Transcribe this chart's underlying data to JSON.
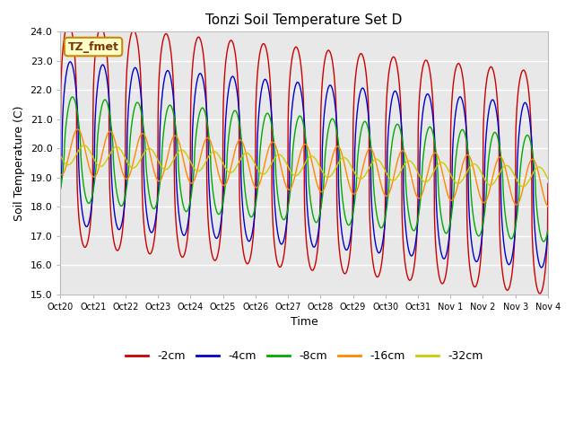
{
  "title": "Tonzi Soil Temperature Set D",
  "xlabel": "Time",
  "ylabel": "Soil Temperature (C)",
  "ylim": [
    15.0,
    24.0
  ],
  "yticks": [
    15.0,
    16.0,
    17.0,
    18.0,
    19.0,
    20.0,
    21.0,
    22.0,
    23.0,
    24.0
  ],
  "xtick_labels": [
    "Oct 20",
    "Oct 21",
    "Oct 22",
    "Oct 23",
    "Oct 24",
    "Oct 25",
    "Oct 26",
    "Oct 27",
    "Oct 28",
    "Oct 29",
    "Oct 30",
    "Oct 31",
    "Nov 1",
    "Nov 2",
    "Nov 3",
    "Nov 4"
  ],
  "legend_labels": [
    "-2cm",
    "-4cm",
    "-8cm",
    "-16cm",
    "-32cm"
  ],
  "line_colors": [
    "#cc0000",
    "#0000cc",
    "#00aa00",
    "#ff8800",
    "#cccc00"
  ],
  "annotation_text": "TZ_fmet",
  "background_color": "#e8e8e8",
  "n_points": 1440,
  "duration_days": 15,
  "mean_start": [
    20.5,
    20.2,
    20.0,
    19.9,
    19.8
  ],
  "mean_end": [
    18.8,
    18.7,
    18.6,
    18.8,
    19.0
  ],
  "amplitudes": [
    3.8,
    2.8,
    1.8,
    0.8,
    0.35
  ],
  "phase_shifts_days": [
    0.0,
    0.05,
    0.12,
    0.28,
    0.48
  ],
  "sharpness": [
    3.0,
    2.0,
    1.5,
    1.0,
    1.0
  ]
}
